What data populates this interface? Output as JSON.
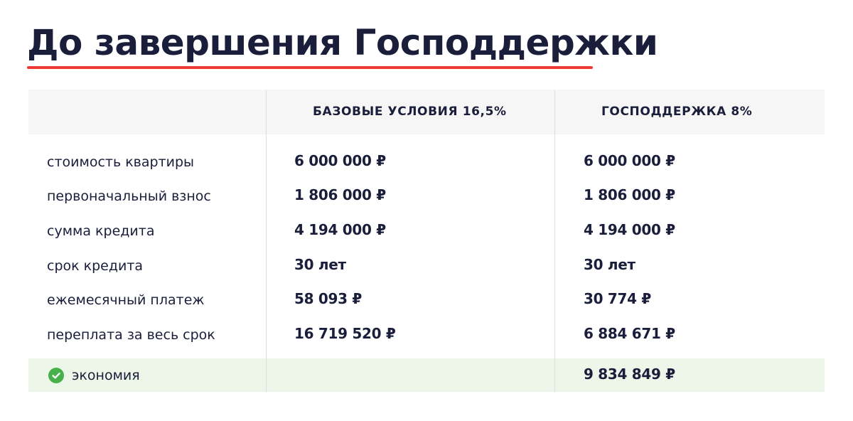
{
  "title": "До завершения Господдержки",
  "colors": {
    "text": "#1b1e3a",
    "accent_underline": "#ee3a33",
    "header_band": "#f6f6f7",
    "savings_band": "#edf7e9",
    "check_icon": "#48b04a"
  },
  "table": {
    "headers": [
      "",
      "БАЗОВЫЕ УСЛОВИЯ 16,5%",
      "ГОСПОДДЕРЖКА 8%"
    ],
    "rows": [
      {
        "label": "стоимость квартиры",
        "base": "6 000 000 ₽",
        "support": "6 000 000 ₽"
      },
      {
        "label": "первоначальный взнос",
        "base": "1 806 000 ₽",
        "support": "1 806 000 ₽"
      },
      {
        "label": "сумма кредита",
        "base": "4 194 000 ₽",
        "support": "4 194 000 ₽"
      },
      {
        "label": "срок кредита",
        "base": "30 лет",
        "support": "30 лет"
      },
      {
        "label": "ежемесячный платеж",
        "base": "58 093 ₽",
        "support": "30 774 ₽"
      },
      {
        "label": "переплата за весь срок",
        "base": "16 719 520 ₽",
        "support": "6 884 671 ₽"
      }
    ],
    "savings": {
      "icon": "check-circle-icon",
      "label": "экономия",
      "base": "",
      "support": "9 834 849 ₽"
    }
  }
}
